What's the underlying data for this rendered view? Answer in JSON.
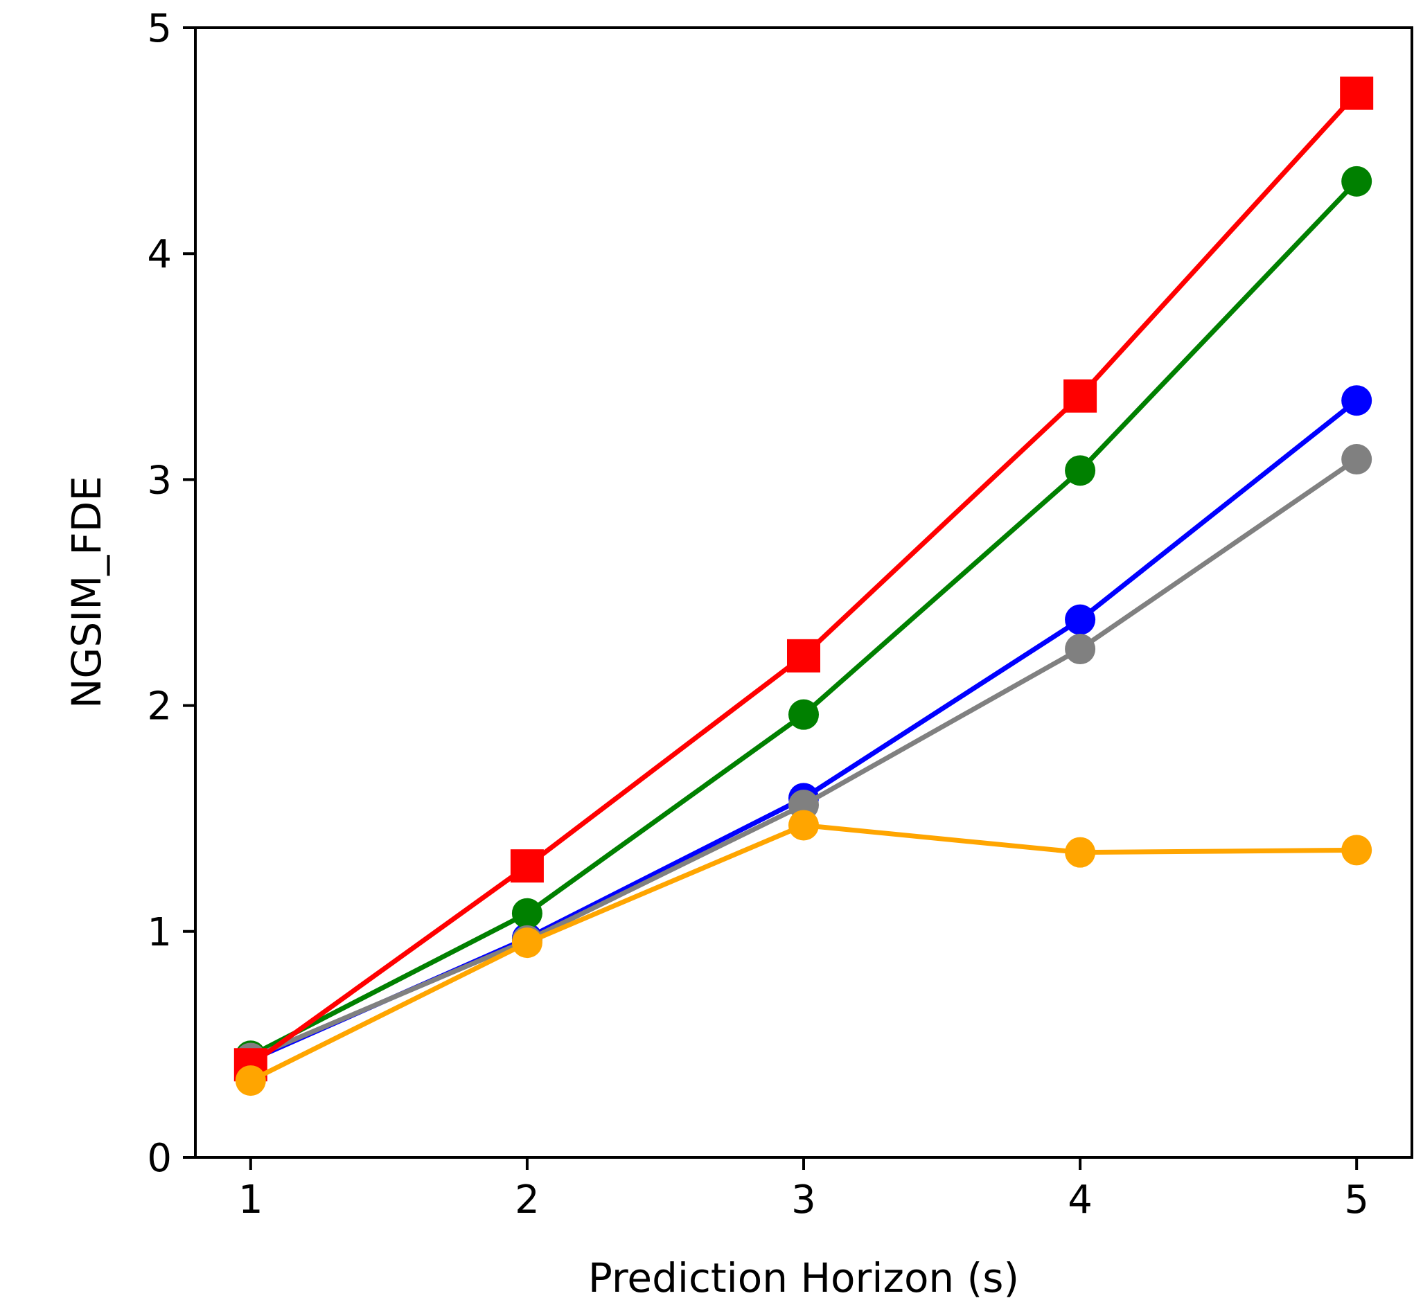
{
  "chart_data": {
    "type": "line",
    "title": "",
    "xlabel": "Prediction Horizon (s)",
    "ylabel": "NGSIM_FDE",
    "x": [
      1,
      2,
      3,
      4,
      5
    ],
    "xticks": [
      1,
      2,
      3,
      4,
      5
    ],
    "yticks": [
      0,
      1,
      2,
      3,
      4,
      5
    ],
    "xlim": [
      0.8,
      5.2
    ],
    "ylim": [
      0,
      5
    ],
    "grid": false,
    "series": [
      {
        "name": "blue series",
        "color": "#0000ff",
        "marker": "circle",
        "values": [
          0.43,
          0.97,
          1.59,
          2.38,
          3.35
        ]
      },
      {
        "name": "green series",
        "color": "#008000",
        "marker": "circle",
        "values": [
          0.45,
          1.08,
          1.96,
          3.04,
          4.32
        ]
      },
      {
        "name": "gray series",
        "color": "#808080",
        "marker": "circle",
        "values": [
          0.44,
          0.96,
          1.56,
          2.25,
          3.09
        ]
      },
      {
        "name": "red series",
        "color": "#ff0000",
        "marker": "square",
        "values": [
          0.41,
          1.29,
          2.22,
          3.37,
          4.71
        ]
      },
      {
        "name": "orange series",
        "color": "#ffa500",
        "marker": "circle",
        "values": [
          0.34,
          0.95,
          1.47,
          1.35,
          1.36
        ]
      }
    ]
  }
}
